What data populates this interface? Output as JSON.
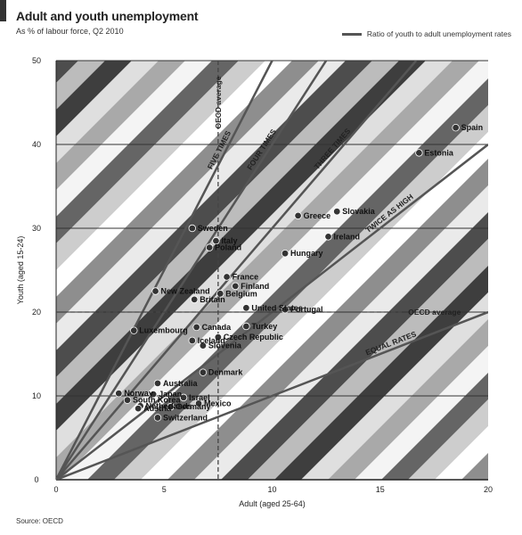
{
  "title": "Adult and youth unemployment",
  "subtitle": "As % of labour force, Q2 2010",
  "legend_label": "Ratio of youth to adult unemployment rates",
  "source": "Source: OECD",
  "chart_data": {
    "type": "scatter",
    "xlabel": "Adult (aged 25-64)",
    "ylabel": "Youth (aged 15-24)",
    "xlim": [
      0,
      20
    ],
    "ylim": [
      0,
      50
    ],
    "xticks": [
      0,
      5,
      10,
      15,
      20
    ],
    "yticks": [
      0,
      10,
      20,
      30,
      40,
      50
    ],
    "grid": "horizontal",
    "oecd_average": {
      "x": 7.5,
      "y": 20,
      "label_x": "OECD average",
      "label_y": "OECD average"
    },
    "ratio_lines": [
      {
        "ratio": 5,
        "label": "FIVE TIMES"
      },
      {
        "ratio": 4,
        "label": "FOUR TIMES"
      },
      {
        "ratio": 3,
        "label": "THREE TIMES"
      },
      {
        "ratio": 2,
        "label": "TWICE AS HIGH"
      },
      {
        "ratio": 1,
        "label": "EQUAL RATES"
      }
    ],
    "points": [
      {
        "label": "Spain",
        "x": 18.5,
        "y": 42
      },
      {
        "label": "Estonia",
        "x": 16.8,
        "y": 39
      },
      {
        "label": "Slovakia",
        "x": 13,
        "y": 32
      },
      {
        "label": "Greece",
        "x": 11.2,
        "y": 31.5
      },
      {
        "label": "Ireland",
        "x": 12.6,
        "y": 29
      },
      {
        "label": "Hungary",
        "x": 10.6,
        "y": 27
      },
      {
        "label": "Sweden",
        "x": 6.3,
        "y": 30
      },
      {
        "label": "Italy",
        "x": 7.4,
        "y": 28.5
      },
      {
        "label": "Poland",
        "x": 7.1,
        "y": 27.7
      },
      {
        "label": "France",
        "x": 7.9,
        "y": 24.2
      },
      {
        "label": "Finland",
        "x": 8.3,
        "y": 23.1
      },
      {
        "label": "Belgium",
        "x": 7.6,
        "y": 22.2
      },
      {
        "label": "New Zealand",
        "x": 4.6,
        "y": 22.5
      },
      {
        "label": "Britain",
        "x": 6.4,
        "y": 21.5
      },
      {
        "label": "United States",
        "x": 8.8,
        "y": 20.5
      },
      {
        "label": "Portugal",
        "x": 10.6,
        "y": 20.3
      },
      {
        "label": "Luxembourg",
        "x": 3.6,
        "y": 17.8
      },
      {
        "label": "Canada",
        "x": 6.5,
        "y": 18.2
      },
      {
        "label": "Turkey",
        "x": 8.8,
        "y": 18.3
      },
      {
        "label": "Czech Republic",
        "x": 7.5,
        "y": 17
      },
      {
        "label": "Slovenia",
        "x": 6.8,
        "y": 16
      },
      {
        "label": "Iceland",
        "x": 6.3,
        "y": 16.6
      },
      {
        "label": "Australia",
        "x": 4.7,
        "y": 11.5
      },
      {
        "label": "Denmark",
        "x": 6.8,
        "y": 12.8
      },
      {
        "label": "Japan",
        "x": 4.5,
        "y": 10.2
      },
      {
        "label": "Norway",
        "x": 2.9,
        "y": 10.3
      },
      {
        "label": "Israel",
        "x": 5.9,
        "y": 9.8
      },
      {
        "label": "South Korea",
        "x": 3.3,
        "y": 9.5
      },
      {
        "label": "Netherlands",
        "x": 3.9,
        "y": 8.8
      },
      {
        "label": "Mexico",
        "x": 6.6,
        "y": 9.1
      },
      {
        "label": "Austria",
        "x": 3.8,
        "y": 8.5
      },
      {
        "label": "Germany",
        "x": 5.3,
        "y": 8.7
      },
      {
        "label": "Switzerland",
        "x": 4.7,
        "y": 7.4
      }
    ]
  }
}
